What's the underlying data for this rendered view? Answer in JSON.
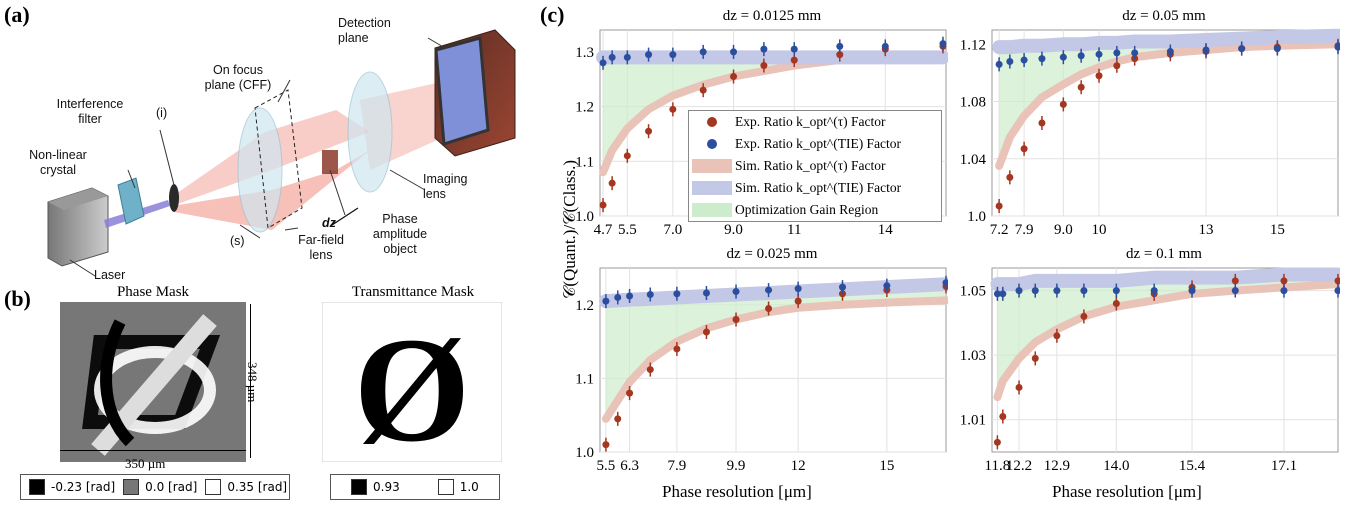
{
  "panel_a": {
    "label": "(a)",
    "labels": {
      "detection_plane": "Detection plane",
      "on_focus_plane": "On focus plane (CFF)",
      "interference_filter": "Interference filter",
      "i_marker": "(i)",
      "nonlinear_crystal": "Non-linear crystal",
      "imaging_lens": "Imaging lens",
      "phase_amplitude_object": "Phase amplitude object",
      "dz": "dz",
      "s_marker": "(s)",
      "farfield_lens": "Far-field lens",
      "laser": "Laser"
    }
  },
  "panel_b": {
    "label": "(b)",
    "phase_mask_title": "Phase Mask",
    "transmittance_mask_title": "Transmittance Mask",
    "height_label": "348 µm",
    "width_label": "350 µm",
    "phase_legend": [
      {
        "label": "-0.23 [rad]",
        "color": "#000000"
      },
      {
        "label": "0.0 [rad]",
        "color": "#777777"
      },
      {
        "label": "0.35 [rad]",
        "color": "#ffffff"
      }
    ],
    "transmittance_legend": [
      {
        "label": "0.93",
        "color": "#000000"
      },
      {
        "label": "1.0",
        "color": "#ffffff"
      }
    ],
    "transmittance_symbol": "Ø"
  },
  "panel_c": {
    "label": "(c)",
    "ylabel": "𝒞(Quant.)/𝒞(Class.)",
    "xlabel": "Phase resolution [μm]",
    "legend": {
      "exp_tau": "Exp. Ratio k_opt^(τ) Factor",
      "exp_tie": "Exp. Ratio k_opt^(TIE) Factor",
      "sim_tau": "Sim. Ratio k_opt^(τ) Factor",
      "sim_tie": "Sim. Ratio k_opt^(TIE) Factor",
      "gain": "Optimization Gain Region"
    },
    "colors": {
      "exp_tau": "#a5361f",
      "exp_tie": "#2b4f9e",
      "sim_tau": "#e9c2b8",
      "sim_tie": "#c3c8e6",
      "gain": "#cdeccb"
    }
  },
  "chart_data": [
    {
      "type": "scatter",
      "title": "dz = 0.0125 mm",
      "xlabel": "Phase resolution [μm]",
      "ylabel": "𝒞(Quant.)/𝒞(Class.)",
      "xlim": [
        4.6,
        16.0
      ],
      "ylim": [
        1.0,
        1.34
      ],
      "xticks": [
        4.7,
        5.5,
        7.0,
        9.0,
        11,
        14
      ],
      "xtick_labels": [
        "4.7",
        "5.5",
        "7.0",
        "9.0",
        "11",
        "14"
      ],
      "yticks": [
        1.0,
        1.1,
        1.2,
        1.3
      ],
      "ytick_labels": [
        "1.0",
        "1.1",
        "1.2",
        "1.3"
      ],
      "x": [
        4.7,
        5.0,
        5.5,
        6.2,
        7.0,
        8.0,
        9.0,
        10.0,
        11.0,
        12.5,
        14.0,
        15.9
      ],
      "series": [
        {
          "name": "Exp. Ratio k_opt^(τ) Factor",
          "values": [
            1.02,
            1.06,
            1.11,
            1.155,
            1.195,
            1.23,
            1.255,
            1.275,
            1.285,
            1.295,
            1.305,
            1.31
          ]
        },
        {
          "name": "Exp. Ratio k_opt^(TIE) Factor",
          "values": [
            1.28,
            1.29,
            1.29,
            1.295,
            1.295,
            1.3,
            1.3,
            1.305,
            1.305,
            1.31,
            1.31,
            1.315
          ]
        },
        {
          "name": "Sim. Ratio k_opt^(τ) Factor",
          "values": [
            1.08,
            1.12,
            1.16,
            1.195,
            1.22,
            1.24,
            1.255,
            1.265,
            1.275,
            1.285,
            1.29,
            1.295
          ]
        },
        {
          "name": "Sim. Ratio k_opt^(TIE) Factor",
          "values": [
            1.29,
            1.29,
            1.29,
            1.29,
            1.29,
            1.29,
            1.29,
            1.29,
            1.29,
            1.29,
            1.29,
            1.29
          ]
        }
      ]
    },
    {
      "type": "scatter",
      "title": "dz = 0.05 mm",
      "xlabel": "Phase resolution [μm]",
      "ylabel": "",
      "xlim": [
        7.0,
        16.7
      ],
      "ylim": [
        1.0,
        1.13
      ],
      "xticks": [
        7.2,
        7.9,
        9.0,
        10,
        13,
        15
      ],
      "xtick_labels": [
        "7.2",
        "7.9",
        "9.0",
        "10",
        "13",
        "15"
      ],
      "yticks": [
        1.0,
        1.04,
        1.08,
        1.12
      ],
      "ytick_labels": [
        "1.0",
        "1.04",
        "1.08",
        "1.12"
      ],
      "x": [
        7.2,
        7.5,
        7.9,
        8.4,
        9.0,
        9.5,
        10.0,
        10.5,
        11.0,
        12.0,
        13.0,
        14.0,
        15.0,
        16.7
      ],
      "series": [
        {
          "name": "Exp. Ratio k_opt^(τ) Factor",
          "values": [
            1.007,
            1.027,
            1.047,
            1.065,
            1.078,
            1.09,
            1.098,
            1.105,
            1.11,
            1.113,
            1.115,
            1.117,
            1.118,
            1.119
          ]
        },
        {
          "name": "Exp. Ratio k_opt^(TIE) Factor",
          "values": [
            1.106,
            1.108,
            1.109,
            1.11,
            1.111,
            1.112,
            1.113,
            1.114,
            1.114,
            1.115,
            1.116,
            1.117,
            1.117,
            1.118
          ]
        },
        {
          "name": "Sim. Ratio k_opt^(τ) Factor",
          "values": [
            1.035,
            1.055,
            1.07,
            1.083,
            1.092,
            1.099,
            1.104,
            1.108,
            1.111,
            1.114,
            1.116,
            1.118,
            1.119,
            1.12
          ]
        },
        {
          "name": "Sim. Ratio k_opt^(TIE) Factor",
          "values": [
            1.118,
            1.118,
            1.119,
            1.119,
            1.12,
            1.12,
            1.121,
            1.121,
            1.122,
            1.122,
            1.123,
            1.124,
            1.125,
            1.126
          ]
        }
      ]
    },
    {
      "type": "scatter",
      "title": "dz = 0.025 mm",
      "xlabel": "Phase resolution [μm]",
      "ylabel": "",
      "xlim": [
        5.3,
        17.0
      ],
      "ylim": [
        1.0,
        1.25
      ],
      "xticks": [
        5.5,
        6.3,
        7.9,
        9.9,
        12,
        15
      ],
      "xtick_labels": [
        "5.5",
        "6.3",
        "7.9",
        "9.9",
        "12",
        "15"
      ],
      "yticks": [
        1.0,
        1.1,
        1.2
      ],
      "ytick_labels": [
        "1.0",
        "1.1",
        "1.2"
      ],
      "x": [
        5.5,
        5.9,
        6.3,
        7.0,
        7.9,
        8.9,
        9.9,
        11.0,
        12.0,
        13.5,
        15.0,
        17.0
      ],
      "series": [
        {
          "name": "Exp. Ratio k_opt^(τ) Factor",
          "values": [
            1.01,
            1.045,
            1.08,
            1.112,
            1.14,
            1.163,
            1.18,
            1.195,
            1.205,
            1.215,
            1.22,
            1.225
          ]
        },
        {
          "name": "Exp. Ratio k_opt^(TIE) Factor",
          "values": [
            1.205,
            1.21,
            1.212,
            1.214,
            1.215,
            1.216,
            1.218,
            1.22,
            1.222,
            1.224,
            1.226,
            1.23
          ]
        },
        {
          "name": "Sim. Ratio k_opt^(τ) Factor",
          "values": [
            1.045,
            1.07,
            1.095,
            1.125,
            1.15,
            1.168,
            1.18,
            1.19,
            1.196,
            1.2,
            1.203,
            1.206
          ]
        },
        {
          "name": "Sim. Ratio k_opt^(TIE) Factor",
          "values": [
            1.205,
            1.206,
            1.207,
            1.208,
            1.21,
            1.212,
            1.214,
            1.216,
            1.218,
            1.221,
            1.224,
            1.228
          ]
        }
      ]
    },
    {
      "type": "scatter",
      "title": "dz = 0.1 mm",
      "xlabel": "Phase resolution [μm]",
      "ylabel": "",
      "xlim": [
        11.7,
        18.1
      ],
      "ylim": [
        1.0,
        1.057
      ],
      "xticks": [
        11.8,
        12.2,
        12.9,
        14.0,
        15.4,
        17.1
      ],
      "xtick_labels": [
        "11.8",
        "12.2",
        "12.9",
        "14.0",
        "15.4",
        "17.1"
      ],
      "yticks": [
        1.01,
        1.03,
        1.05
      ],
      "ytick_labels": [
        "1.01",
        "1.03",
        "1.05"
      ],
      "x": [
        11.8,
        11.9,
        12.2,
        12.5,
        12.9,
        13.4,
        14.0,
        14.7,
        15.4,
        16.2,
        17.1,
        18.1
      ],
      "series": [
        {
          "name": "Exp. Ratio k_opt^(τ) Factor",
          "values": [
            1.003,
            1.011,
            1.02,
            1.029,
            1.036,
            1.042,
            1.046,
            1.049,
            1.051,
            1.053,
            1.053,
            1.053
          ]
        },
        {
          "name": "Exp. Ratio k_opt^(TIE) Factor",
          "values": [
            1.049,
            1.049,
            1.05,
            1.05,
            1.05,
            1.05,
            1.05,
            1.05,
            1.05,
            1.05,
            1.05,
            1.05
          ]
        },
        {
          "name": "Sim. Ratio k_opt^(τ) Factor",
          "values": [
            1.017,
            1.022,
            1.029,
            1.034,
            1.038,
            1.042,
            1.045,
            1.047,
            1.049,
            1.05,
            1.051,
            1.052
          ]
        },
        {
          "name": "Sim. Ratio k_opt^(TIE) Factor",
          "values": [
            1.052,
            1.052,
            1.052,
            1.053,
            1.053,
            1.053,
            1.053,
            1.054,
            1.054,
            1.054,
            1.055,
            1.055
          ]
        }
      ]
    }
  ]
}
